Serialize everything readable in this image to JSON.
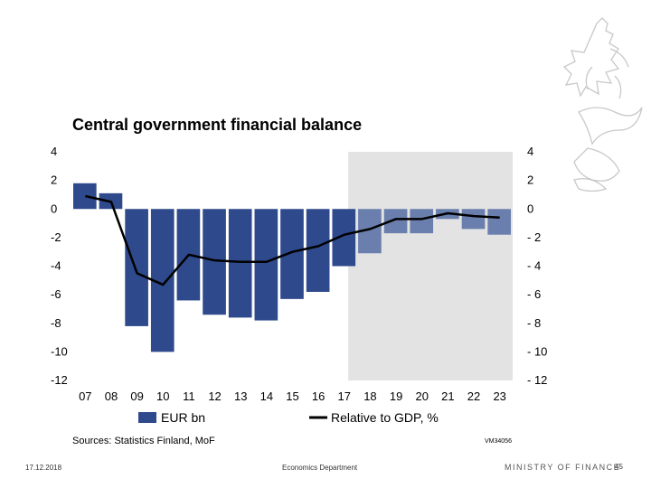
{
  "chart_data": {
    "type": "bar",
    "title": "Central government financial balance",
    "categories": [
      "07",
      "08",
      "09",
      "10",
      "11",
      "12",
      "13",
      "14",
      "15",
      "16",
      "17",
      "18",
      "19",
      "20",
      "21",
      "22",
      "23"
    ],
    "series": [
      {
        "name": "EUR bn",
        "kind": "bar",
        "color": "#2e4a8c",
        "forecast_color": "#6a7fad",
        "values": [
          1.8,
          1.1,
          -8.2,
          -10.0,
          -6.4,
          -7.4,
          -7.6,
          -7.8,
          -6.3,
          -5.8,
          -4.0,
          -3.1,
          -1.7,
          -1.7,
          -0.7,
          -1.4,
          -1.8
        ]
      },
      {
        "name": "Relative to GDP, %",
        "kind": "line",
        "color": "#000000",
        "values": [
          0.9,
          0.5,
          -4.5,
          -5.3,
          -3.2,
          -3.6,
          -3.7,
          -3.7,
          -3.0,
          -2.6,
          -1.8,
          -1.4,
          -0.7,
          -0.7,
          -0.3,
          -0.5,
          -0.6
        ]
      }
    ],
    "forecast_start": "18",
    "ylim": [
      -12,
      4
    ],
    "yticks_left": [
      "4",
      "2",
      "0",
      "-2",
      "-4",
      "-6",
      "-8",
      "-10",
      "-12"
    ],
    "yticks_right": [
      "4",
      "2",
      "0",
      "- 2",
      "- 4",
      "- 6",
      "- 8",
      "- 10",
      "- 12"
    ],
    "legend_position": "bottom"
  },
  "source": "Sources: Statistics Finland, MoF",
  "code": "VM34056",
  "footer": {
    "date": "17.12.2018",
    "department": "Economics Department",
    "ministry": "MINISTRY OF FINANCE",
    "page": "45"
  },
  "colors": {
    "bar": "#2e4a8c",
    "bar_forecast": "#6a7fad",
    "forecast_bg": "#e3e3e3"
  }
}
